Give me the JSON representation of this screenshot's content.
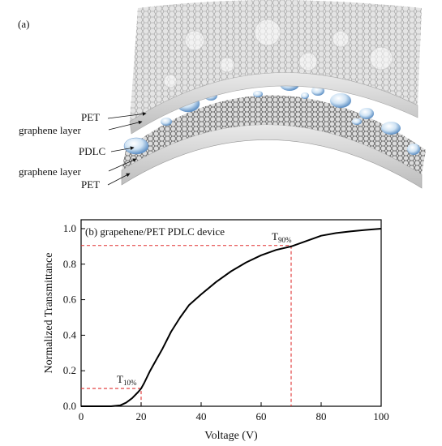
{
  "panel_a": {
    "label": "(a)",
    "layer_labels": [
      "PET",
      "graphene layer",
      "PDLC",
      "graphene layer",
      "PET"
    ]
  },
  "panel_b": {
    "label": "(b) grapehene/PET  PDLC device"
  },
  "chart_data": {
    "type": "line",
    "title": "(b) grapehene/PET  PDLC device",
    "xlabel": "Voltage (V)",
    "ylabel": "Normalized Transmittance",
    "xlim": [
      0,
      100
    ],
    "ylim": [
      0,
      1.05
    ],
    "xticks": [
      0,
      20,
      40,
      60,
      80,
      100
    ],
    "yticks": [
      0.0,
      0.2,
      0.4,
      0.6,
      0.8,
      1.0
    ],
    "grid": false,
    "series": [
      {
        "x": [
          0,
          10,
          13,
          15,
          17,
          19,
          20,
          21,
          23,
          25,
          27,
          30,
          33,
          36,
          40,
          45,
          50,
          55,
          60,
          65,
          70,
          75,
          80,
          85,
          90,
          95,
          100
        ],
        "y": [
          0,
          0,
          0.005,
          0.02,
          0.045,
          0.08,
          0.1,
          0.13,
          0.2,
          0.26,
          0.32,
          0.42,
          0.5,
          0.57,
          0.63,
          0.7,
          0.76,
          0.81,
          0.85,
          0.88,
          0.9,
          0.93,
          0.96,
          0.975,
          0.985,
          0.993,
          1.0
        ],
        "color": "#000000"
      }
    ],
    "annotations": [
      {
        "text_main": "T",
        "text_sub": "10%",
        "x": 20,
        "y": 0.1,
        "color": "#e03030"
      },
      {
        "text_main": "T",
        "text_sub": "90%",
        "x": 70,
        "y": 0.905,
        "color": "#e03030"
      }
    ]
  }
}
